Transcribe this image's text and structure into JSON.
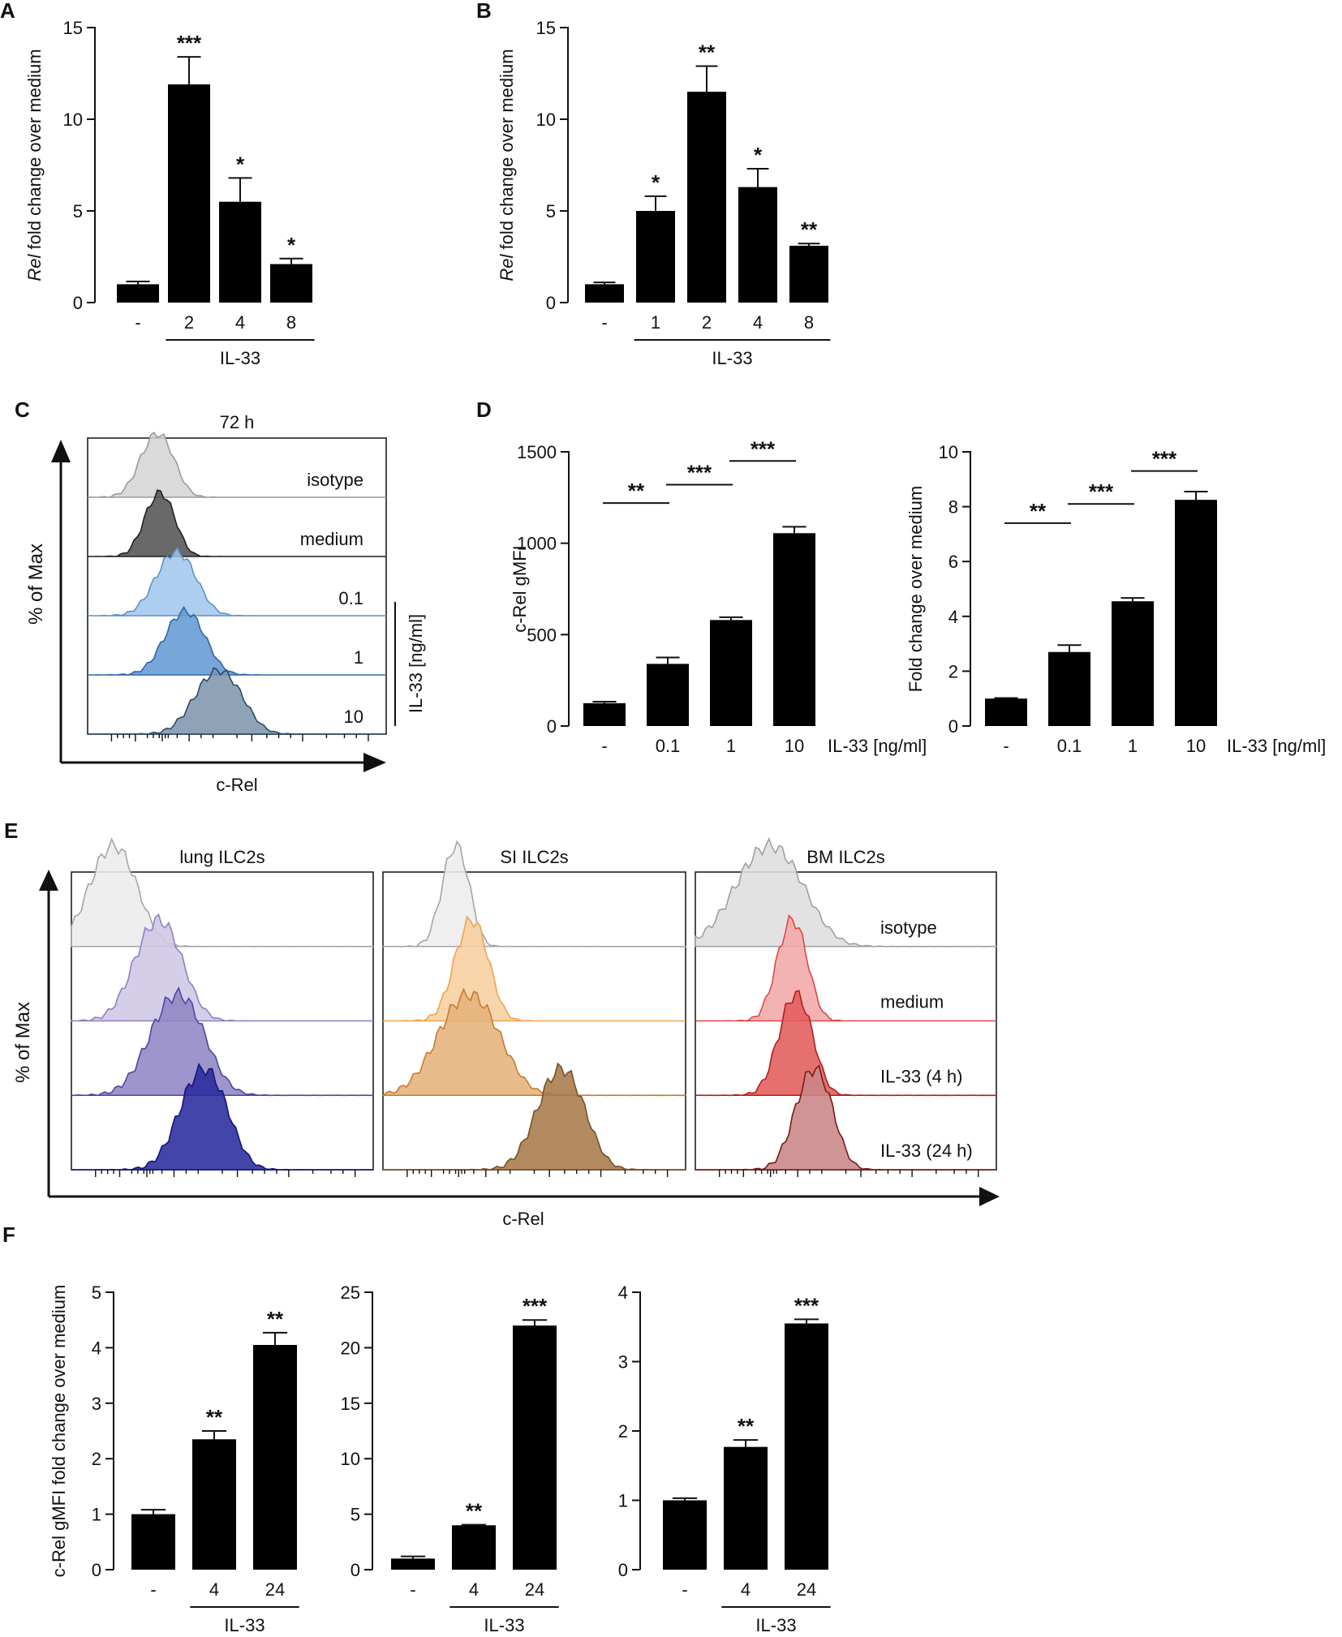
{
  "chart_data": [
    {
      "id": "A",
      "type": "bar",
      "panel_label": "A",
      "categories": [
        "-",
        "2",
        "4",
        "8"
      ],
      "values": [
        1.0,
        11.9,
        5.5,
        2.1
      ],
      "errors": [
        0.15,
        1.5,
        1.3,
        0.3
      ],
      "significance": [
        "",
        "***",
        "*",
        "*"
      ],
      "ylabel_italic": "Rel",
      "ylabel_rest": " fold change over medium",
      "ylim": [
        0,
        15
      ],
      "yticks": [
        0,
        5,
        10,
        15
      ],
      "group_label": "IL-33"
    },
    {
      "id": "B",
      "type": "bar",
      "panel_label": "B",
      "categories": [
        "-",
        "1",
        "2",
        "4",
        "8"
      ],
      "values": [
        1.0,
        5.0,
        11.5,
        6.3,
        3.1
      ],
      "errors": [
        0.1,
        0.8,
        1.4,
        1.0,
        0.12
      ],
      "significance": [
        "",
        "*",
        "**",
        "*",
        "**"
      ],
      "ylabel_italic": "Rel",
      "ylabel_rest": " fold change over medium",
      "ylim": [
        0,
        15
      ],
      "yticks": [
        0,
        5,
        10,
        15
      ],
      "group_label": "IL-33"
    },
    {
      "id": "C",
      "type": "histogram",
      "panel_label": "C",
      "title": "72 h",
      "xlabel": "c-Rel",
      "ylabel": "% of Max",
      "right_label": "IL-33 [ng/ml]",
      "tracks": [
        {
          "label": "isotype",
          "peak": 0.22,
          "width": 0.05,
          "fill": "#d4d4d4",
          "stroke": "#9a9a9a"
        },
        {
          "label": "medium",
          "peak": 0.23,
          "width": 0.045,
          "fill": "#4f4f4f",
          "stroke": "#1f1f1f"
        },
        {
          "label": "0.1",
          "peak": 0.28,
          "width": 0.06,
          "fill": "#9fc6eb",
          "stroke": "#5a93cc"
        },
        {
          "label": "1",
          "peak": 0.31,
          "width": 0.06,
          "fill": "#5f98d1",
          "stroke": "#2e66a8"
        },
        {
          "label": "10",
          "peak": 0.42,
          "width": 0.07,
          "fill": "#7b93ac",
          "stroke": "#2b4a6b"
        }
      ]
    },
    {
      "id": "D1",
      "type": "bar",
      "panel_label": "D",
      "categories": [
        "-",
        "0.1",
        "1",
        "10"
      ],
      "values": [
        125,
        340,
        580,
        1055
      ],
      "errors": [
        8,
        35,
        15,
        35
      ],
      "brackets": [
        {
          "from": 0,
          "to": 1,
          "label": "**"
        },
        {
          "from": 1,
          "to": 2,
          "label": "***"
        },
        {
          "from": 2,
          "to": 3,
          "label": "***"
        }
      ],
      "ylabel": "c-Rel gMFI",
      "ylim": [
        0,
        1500
      ],
      "yticks": [
        0,
        500,
        1000,
        1500
      ],
      "x_suffix": "IL-33 [ng/ml]"
    },
    {
      "id": "D2",
      "type": "bar",
      "categories": [
        "-",
        "0.1",
        "1",
        "10"
      ],
      "values": [
        1.0,
        2.7,
        4.55,
        8.25
      ],
      "errors": [
        0.02,
        0.25,
        0.12,
        0.3
      ],
      "brackets": [
        {
          "from": 0,
          "to": 1,
          "label": "**"
        },
        {
          "from": 1,
          "to": 2,
          "label": "***"
        },
        {
          "from": 2,
          "to": 3,
          "label": "***"
        }
      ],
      "ylabel": "Fold change over medium",
      "ylim": [
        0,
        10
      ],
      "yticks": [
        0,
        2,
        4,
        6,
        8,
        10
      ],
      "x_suffix": "IL-33 [ng/ml]"
    },
    {
      "id": "E",
      "type": "histogram",
      "panel_label": "E",
      "xlabel": "c-Rel",
      "ylabel": "% of Max",
      "row_labels": [
        "isotype",
        "medium",
        "IL-33 (4 h)",
        "IL-33 (24 h)"
      ],
      "panels": [
        {
          "title": "lung ILC2s",
          "tracks": [
            {
              "peak": 0.12,
              "width": 0.07,
              "fill": "#ececec",
              "stroke": "#a5a5a5"
            },
            {
              "peak": 0.27,
              "width": 0.07,
              "fill": "#cfc7e6",
              "stroke": "#8f7fc2"
            },
            {
              "peak": 0.33,
              "width": 0.08,
              "fill": "#8f86c4",
              "stroke": "#4e46a0"
            },
            {
              "peak": 0.42,
              "width": 0.07,
              "fill": "#2a2b9c",
              "stroke": "#15157a"
            }
          ]
        },
        {
          "title": "SI ILC2s",
          "tracks": [
            {
              "peak": 0.23,
              "width": 0.04,
              "fill": "#ededed",
              "stroke": "#a5a5a5"
            },
            {
              "peak": 0.28,
              "width": 0.05,
              "fill": "#f8cf9f",
              "stroke": "#f0a24f"
            },
            {
              "peak": 0.26,
              "width": 0.09,
              "fill": "#e5b27a",
              "stroke": "#c87a2e"
            },
            {
              "peak": 0.57,
              "width": 0.07,
              "fill": "#a8794a",
              "stroke": "#7a4f24"
            }
          ]
        },
        {
          "title": "BM ILC2s",
          "tracks": [
            {
              "peak": 0.22,
              "width": 0.1,
              "fill": "#dedede",
              "stroke": "#a0a0a0"
            },
            {
              "peak": 0.31,
              "width": 0.045,
              "fill": "#f3a9a9",
              "stroke": "#e04545"
            },
            {
              "peak": 0.32,
              "width": 0.05,
              "fill": "#e25c5c",
              "stroke": "#b21f1f"
            },
            {
              "peak": 0.38,
              "width": 0.055,
              "fill": "#c98585",
              "stroke": "#7a1a1a"
            }
          ]
        }
      ]
    },
    {
      "id": "F1",
      "type": "bar",
      "panel_label": "F",
      "categories": [
        "-",
        "4",
        "24"
      ],
      "values": [
        1.0,
        2.35,
        4.05
      ],
      "errors": [
        0.08,
        0.15,
        0.22
      ],
      "significance": [
        "",
        "**",
        "**"
      ],
      "ylabel": "c-Rel gMFI fold change over medium",
      "ylim": [
        0,
        5
      ],
      "yticks": [
        0,
        1,
        2,
        3,
        4,
        5
      ],
      "group_label": "IL-33"
    },
    {
      "id": "F2",
      "type": "bar",
      "categories": [
        "-",
        "4",
        "24"
      ],
      "values": [
        1.0,
        4.0,
        22.0
      ],
      "errors": [
        0.2,
        0.05,
        0.5
      ],
      "significance": [
        "",
        "**",
        "***"
      ],
      "ylim": [
        0,
        25
      ],
      "yticks": [
        0,
        5,
        10,
        15,
        20,
        25
      ],
      "group_label": "IL-33"
    },
    {
      "id": "F3",
      "type": "bar",
      "categories": [
        "-",
        "4",
        "24"
      ],
      "values": [
        1.0,
        1.77,
        3.55
      ],
      "errors": [
        0.03,
        0.1,
        0.06
      ],
      "significance": [
        "",
        "**",
        "***"
      ],
      "ylim": [
        0,
        4
      ],
      "yticks": [
        0,
        1,
        2,
        3,
        4
      ],
      "group_label": "IL-33"
    }
  ]
}
